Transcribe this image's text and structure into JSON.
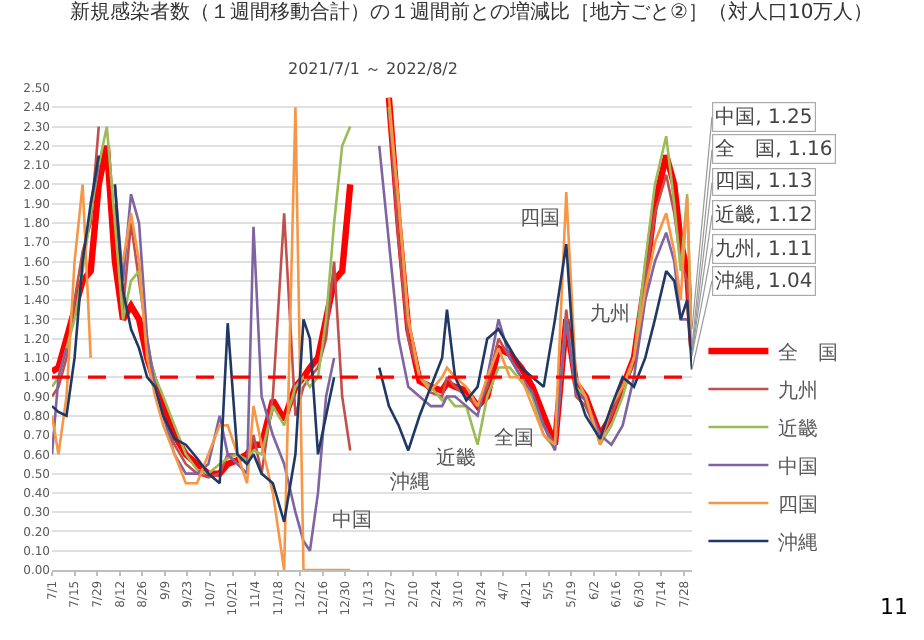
{
  "chart_data": {
    "type": "line",
    "title": "新規感染者数（１週間移動合計）の１週間前との増減比［地方ごと②］（対人口10万人）",
    "subtitle": "2021/7/1 ～ 2022/8/2",
    "x": [
      "2021-07-01",
      "2021-07-05",
      "2021-07-10",
      "2021-07-15",
      "2021-07-20",
      "2021-07-25",
      "2021-07-30",
      "2021-08-04",
      "2021-08-09",
      "2021-08-14",
      "2021-08-19",
      "2021-08-24",
      "2021-08-29",
      "2021-09-03",
      "2021-09-08",
      "2021-09-15",
      "2021-09-22",
      "2021-09-29",
      "2021-10-06",
      "2021-10-13",
      "2021-10-18",
      "2021-10-24",
      "2021-10-30",
      "2021-11-03",
      "2021-11-08",
      "2021-11-15",
      "2021-11-22",
      "2021-11-29",
      "2021-12-04",
      "2021-12-08",
      "2021-12-13",
      "2021-12-18",
      "2021-12-23",
      "2021-12-28",
      "2022-01-02",
      "2022-01-08",
      "2022-01-14",
      "2022-01-20",
      "2022-01-26",
      "2022-02-01",
      "2022-02-07",
      "2022-02-14",
      "2022-02-21",
      "2022-02-28",
      "2022-03-03",
      "2022-03-08",
      "2022-03-15",
      "2022-03-22",
      "2022-03-28",
      "2022-04-04",
      "2022-04-11",
      "2022-04-18",
      "2022-04-25",
      "2022-05-02",
      "2022-05-09",
      "2022-05-16",
      "2022-05-22",
      "2022-05-28",
      "2022-06-06",
      "2022-06-13",
      "2022-06-20",
      "2022-06-27",
      "2022-07-04",
      "2022-07-10",
      "2022-07-17",
      "2022-07-22",
      "2022-07-26",
      "2022-07-30",
      "2022-08-02"
    ],
    "series": [
      {
        "name": "全　国",
        "color": "#ff0000",
        "values": [
          1.03,
          1.05,
          1.2,
          1.35,
          1.5,
          1.55,
          2.0,
          2.2,
          1.6,
          1.3,
          1.37,
          1.3,
          1.1,
          0.97,
          0.85,
          0.7,
          0.6,
          0.55,
          0.5,
          0.5,
          0.55,
          0.57,
          0.6,
          0.65,
          0.65,
          0.88,
          0.78,
          0.95,
          1.0,
          1.05,
          1.1,
          1.3,
          1.5,
          1.55,
          2.0,
          null,
          null,
          null,
          2.45,
          1.8,
          1.25,
          0.98,
          0.95,
          0.93,
          0.97,
          0.95,
          0.93,
          0.85,
          0.9,
          1.15,
          1.12,
          1.05,
          0.95,
          0.8,
          0.65,
          1.3,
          0.97,
          0.9,
          0.7,
          0.8,
          0.95,
          1.1,
          1.5,
          1.9,
          2.15,
          2.0,
          1.7,
          1.55,
          1.16
        ]
      },
      {
        "name": "九州",
        "color": "#c0504d",
        "values": [
          0.9,
          0.95,
          1.1,
          1.4,
          1.65,
          1.8,
          2.3,
          null,
          1.9,
          1.35,
          1.8,
          1.5,
          1.2,
          0.95,
          0.8,
          0.65,
          0.55,
          0.5,
          0.48,
          0.5,
          0.6,
          0.6,
          0.55,
          0.7,
          0.5,
          0.9,
          1.85,
          0.8,
          0.95,
          1.0,
          1.05,
          1.2,
          1.6,
          0.9,
          0.62,
          null,
          null,
          null,
          2.4,
          1.7,
          1.2,
          1.0,
          0.92,
          0.9,
          1.0,
          0.95,
          0.9,
          0.85,
          0.95,
          1.2,
          1.1,
          1.0,
          0.9,
          0.75,
          0.65,
          1.35,
          0.9,
          0.85,
          0.68,
          0.8,
          0.95,
          1.1,
          1.5,
          1.85,
          2.05,
          1.85,
          1.6,
          1.5,
          1.11
        ]
      },
      {
        "name": "近畿",
        "color": "#9bbb59",
        "values": [
          0.95,
          1.0,
          1.15,
          1.3,
          1.55,
          1.85,
          2.1,
          2.3,
          1.8,
          1.3,
          1.5,
          1.55,
          1.15,
          1.0,
          0.9,
          0.75,
          0.6,
          0.52,
          0.5,
          0.55,
          0.58,
          0.6,
          0.57,
          0.62,
          0.6,
          0.85,
          0.75,
          0.95,
          1.0,
          0.95,
          1.0,
          1.3,
          1.8,
          2.2,
          2.3,
          null,
          null,
          null,
          2.4,
          1.9,
          1.3,
          1.0,
          0.95,
          0.88,
          0.9,
          0.85,
          0.85,
          0.65,
          0.9,
          1.05,
          1.05,
          0.98,
          0.9,
          0.7,
          0.63,
          1.3,
          0.95,
          0.9,
          0.65,
          0.75,
          0.9,
          1.1,
          1.6,
          2.0,
          2.25,
          1.9,
          1.55,
          1.95,
          1.12
        ]
      },
      {
        "name": "中国",
        "color": "#8064a2",
        "values": [
          0.6,
          1.0,
          1.15,
          null,
          null,
          1.9,
          2.1,
          null,
          2.0,
          1.5,
          1.95,
          1.8,
          1.2,
          0.95,
          0.8,
          0.6,
          0.5,
          0.5,
          0.55,
          0.8,
          0.6,
          0.55,
          0.5,
          1.78,
          0.9,
          0.7,
          0.55,
          0.3,
          0.15,
          0.1,
          0.4,
          0.9,
          1.1,
          null,
          null,
          null,
          null,
          2.2,
          1.7,
          1.2,
          0.95,
          0.9,
          0.85,
          0.85,
          0.9,
          0.9,
          0.85,
          0.8,
          1.0,
          1.3,
          1.1,
          1.0,
          0.92,
          0.75,
          0.62,
          1.3,
          0.92,
          0.88,
          0.7,
          0.65,
          0.75,
          1.0,
          1.4,
          1.6,
          1.75,
          1.6,
          1.3,
          1.3,
          1.25
        ]
      },
      {
        "name": "四国",
        "color": "#f79646",
        "values": [
          0.8,
          0.6,
          0.9,
          1.6,
          2.0,
          1.1,
          null,
          null,
          null,
          1.6,
          1.85,
          1.6,
          1.1,
          0.9,
          0.75,
          0.6,
          0.45,
          0.45,
          0.6,
          0.75,
          0.75,
          0.6,
          0.45,
          0.85,
          0.65,
          0.4,
          0.0,
          2.4,
          0.0,
          0.0,
          0.0,
          0.0,
          0.0,
          0.0,
          0.0,
          null,
          null,
          null,
          2.45,
          1.9,
          1.3,
          1.0,
          0.93,
          1.0,
          1.05,
          1.0,
          0.95,
          0.85,
          1.0,
          1.15,
          1.0,
          1.0,
          0.85,
          0.7,
          0.65,
          1.96,
          1.0,
          0.9,
          0.65,
          0.85,
          0.95,
          1.1,
          1.45,
          1.7,
          1.85,
          1.65,
          1.4,
          1.93,
          1.13
        ]
      },
      {
        "name": "沖縄",
        "color": "#1f3864",
        "values": [
          0.85,
          0.82,
          0.8,
          1.1,
          1.6,
          1.9,
          2.15,
          null,
          2.0,
          1.45,
          1.25,
          1.15,
          1.0,
          0.95,
          0.8,
          0.68,
          0.65,
          0.58,
          0.5,
          0.45,
          1.28,
          0.6,
          0.55,
          0.6,
          0.5,
          0.45,
          0.25,
          0.6,
          1.3,
          1.2,
          0.6,
          0.8,
          1.0,
          null,
          null,
          null,
          null,
          1.05,
          0.85,
          0.75,
          0.62,
          0.8,
          0.95,
          1.1,
          1.35,
          1.0,
          0.88,
          0.95,
          1.2,
          1.25,
          1.15,
          1.05,
          1.0,
          0.95,
          1.3,
          1.69,
          0.95,
          0.8,
          0.68,
          0.85,
          1.0,
          0.95,
          1.1,
          1.3,
          1.55,
          1.5,
          1.3,
          1.4,
          1.04
        ]
      }
    ],
    "xlim": [
      "2021-07-01",
      "2022-08-02"
    ],
    "xticks": [
      {
        "value": "2021-07-01",
        "label": "7/1"
      },
      {
        "value": "2021-07-15",
        "label": "7/15"
      },
      {
        "value": "2021-07-29",
        "label": "7/29"
      },
      {
        "value": "2021-08-12",
        "label": "8/12"
      },
      {
        "value": "2021-08-26",
        "label": "8/26"
      },
      {
        "value": "2021-09-09",
        "label": "9/9"
      },
      {
        "value": "2021-09-23",
        "label": "9/23"
      },
      {
        "value": "2021-10-07",
        "label": "10/7"
      },
      {
        "value": "2021-10-21",
        "label": "10/21"
      },
      {
        "value": "2021-11-04",
        "label": "11/4"
      },
      {
        "value": "2021-11-18",
        "label": "11/18"
      },
      {
        "value": "2021-12-02",
        "label": "12/2"
      },
      {
        "value": "2021-12-16",
        "label": "12/16"
      },
      {
        "value": "2021-12-30",
        "label": "12/30"
      },
      {
        "value": "2022-01-13",
        "label": "1/13"
      },
      {
        "value": "2022-01-27",
        "label": "1/27"
      },
      {
        "value": "2022-02-10",
        "label": "2/10"
      },
      {
        "value": "2022-02-24",
        "label": "2/24"
      },
      {
        "value": "2022-03-10",
        "label": "3/10"
      },
      {
        "value": "2022-03-24",
        "label": "3/24"
      },
      {
        "value": "2022-04-07",
        "label": "4/7"
      },
      {
        "value": "2022-04-21",
        "label": "4/21"
      },
      {
        "value": "2022-05-05",
        "label": "5/5"
      },
      {
        "value": "2022-05-19",
        "label": "5/19"
      },
      {
        "value": "2022-06-02",
        "label": "6/2"
      },
      {
        "value": "2022-06-16",
        "label": "6/16"
      },
      {
        "value": "2022-06-30",
        "label": "6/30"
      },
      {
        "value": "2022-07-14",
        "label": "7/14"
      },
      {
        "value": "2022-07-28",
        "label": "7/28"
      }
    ],
    "ylim": [
      0,
      2.5
    ],
    "yticks": [
      {
        "value": 0,
        "label": "0.00"
      },
      {
        "value": 0.1,
        "label": "0.10"
      },
      {
        "value": 0.2,
        "label": "0.20"
      },
      {
        "value": 0.3,
        "label": "0.30"
      },
      {
        "value": 0.4,
        "label": "0.40"
      },
      {
        "value": 0.5,
        "label": "0.50"
      },
      {
        "value": 0.6,
        "label": "0.60"
      },
      {
        "value": 0.7,
        "label": "0.70"
      },
      {
        "value": 0.8,
        "label": "0.80"
      },
      {
        "value": 0.9,
        "label": "0.90"
      },
      {
        "value": 1.0,
        "label": "1.00"
      },
      {
        "value": 1.1,
        "label": "1.10"
      },
      {
        "value": 1.2,
        "label": "1.20"
      },
      {
        "value": 1.3,
        "label": "1.30"
      },
      {
        "value": 1.4,
        "label": "1.40"
      },
      {
        "value": 1.5,
        "label": "1.50"
      },
      {
        "value": 1.6,
        "label": "1.60"
      },
      {
        "value": 1.7,
        "label": "1.70"
      },
      {
        "value": 1.8,
        "label": "1.80"
      },
      {
        "value": 1.9,
        "label": "1.90"
      },
      {
        "value": 2.0,
        "label": "2.00"
      },
      {
        "value": 2.1,
        "label": "2.10"
      },
      {
        "value": 2.2,
        "label": "2.20"
      },
      {
        "value": 2.3,
        "label": "2.30"
      },
      {
        "value": 2.4,
        "label": "2.40"
      },
      {
        "value": 2.5,
        "label": "2.50"
      }
    ],
    "ref_lines": [
      {
        "axis": "y",
        "value": 1.0,
        "color": "#ff0000",
        "line_style": "dashed"
      }
    ],
    "annotations": [
      "四国",
      "九州",
      "全国",
      "近畿",
      "沖縄",
      "中国",
      {
        "text": "中国, 1.25",
        "x": "2022-08-02",
        "y": 1.25
      },
      {
        "text": "全　国, 1.16",
        "x": "2022-08-02",
        "y": 1.16
      },
      {
        "text": "四国, 1.13",
        "x": "2022-08-02",
        "y": 1.13
      },
      {
        "text": "近畿, 1.12",
        "x": "2022-08-02",
        "y": 1.12
      },
      {
        "text": "九州, 1.11",
        "x": "2022-08-02",
        "y": 1.11
      },
      {
        "text": "沖縄, 1.04",
        "x": "2022-08-02",
        "y": 1.04
      },
      "11"
    ],
    "grid": "y",
    "legend": "bottom right",
    "marker": "none",
    "line_style": "solid"
  }
}
